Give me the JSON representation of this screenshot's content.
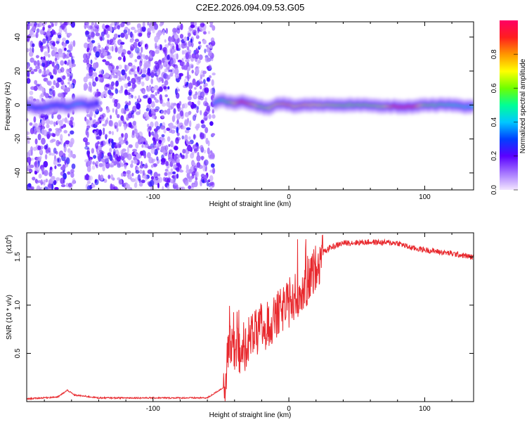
{
  "title": "C2E2.2026.094.09.53.G05",
  "chart_data": [
    {
      "type": "heatmap",
      "xlabel": "Height of straight line (km)",
      "ylabel": "Frequency (Hz)",
      "xlim": [
        -193,
        136
      ],
      "ylim": [
        -50,
        49
      ],
      "xticks": [
        -100,
        0,
        100
      ],
      "yticks": [
        -40,
        -20,
        0,
        20,
        40
      ],
      "colorbar": {
        "label": "Normalized spectral amplitude",
        "range": [
          0,
          1
        ],
        "ticks": [
          0.0,
          0.2,
          0.4,
          0.6,
          0.8
        ],
        "tick_labels": [
          "0.0",
          "0.2",
          "0.4",
          "0.6",
          "0.8"
        ]
      },
      "noise_regions": [
        [
          -193,
          -158
        ],
        [
          -150,
          -55
        ]
      ],
      "signal_track": [
        {
          "x": -193,
          "y": 0,
          "a": 0.35
        },
        {
          "x": -185,
          "y": -2,
          "a": 0.3
        },
        {
          "x": -178,
          "y": -1,
          "a": 0.35
        },
        {
          "x": -170,
          "y": 0,
          "a": 0.3
        },
        {
          "x": -162,
          "y": -1,
          "a": 0.35
        },
        {
          "x": -154,
          "y": 1,
          "a": 0.4
        },
        {
          "x": -147,
          "y": 0,
          "a": 0.3
        },
        {
          "x": -140,
          "y": 1,
          "a": 0.25
        },
        {
          "x": -55,
          "y": 1,
          "a": 0.35
        },
        {
          "x": -50,
          "y": 3,
          "a": 0.5
        },
        {
          "x": -45,
          "y": 2,
          "a": 0.55
        },
        {
          "x": -40,
          "y": 1,
          "a": 0.7
        },
        {
          "x": -35,
          "y": 2,
          "a": 0.9
        },
        {
          "x": -30,
          "y": 1,
          "a": 0.85
        },
        {
          "x": -25,
          "y": 0,
          "a": 0.7
        },
        {
          "x": -20,
          "y": -1,
          "a": 0.6
        },
        {
          "x": -15,
          "y": -2,
          "a": 0.65
        },
        {
          "x": -10,
          "y": 0,
          "a": 0.7
        },
        {
          "x": -5,
          "y": 1,
          "a": 0.75
        },
        {
          "x": 0,
          "y": 0,
          "a": 0.8
        },
        {
          "x": 5,
          "y": -1,
          "a": 0.7
        },
        {
          "x": 10,
          "y": 0,
          "a": 0.75
        },
        {
          "x": 20,
          "y": 0,
          "a": 0.7
        },
        {
          "x": 30,
          "y": 0,
          "a": 0.65
        },
        {
          "x": 40,
          "y": 0,
          "a": 0.6
        },
        {
          "x": 50,
          "y": 0,
          "a": 0.6
        },
        {
          "x": 60,
          "y": 0,
          "a": 0.6
        },
        {
          "x": 70,
          "y": -1,
          "a": 0.65
        },
        {
          "x": 78,
          "y": -1,
          "a": 0.9
        },
        {
          "x": 85,
          "y": -1,
          "a": 0.95
        },
        {
          "x": 92,
          "y": -1,
          "a": 0.9
        },
        {
          "x": 100,
          "y": 0,
          "a": 0.6
        },
        {
          "x": 110,
          "y": 0,
          "a": 0.55
        },
        {
          "x": 120,
          "y": 0,
          "a": 0.5
        },
        {
          "x": 130,
          "y": -1,
          "a": 0.45
        },
        {
          "x": 136,
          "y": -1,
          "a": 0.4
        }
      ]
    },
    {
      "type": "line",
      "xlabel": "Height of straight line (km)",
      "ylabel": "SNR (10 * v/v)",
      "y_multiplier_label": "(x10",
      "y_multiplier_exp": "4",
      "xlim": [
        -193,
        136
      ],
      "ylim": [
        0,
        1.75
      ],
      "xticks": [
        -100,
        0,
        100
      ],
      "yticks": [
        0.5,
        1.0,
        1.5
      ],
      "ytick_labels": [
        "0.5",
        "1.0",
        "1.5"
      ],
      "series": [
        {
          "color": "#e8282d",
          "envelope": [
            {
              "x": -193,
              "y": 0.03
            },
            {
              "x": -170,
              "y": 0.05
            },
            {
              "x": -163,
              "y": 0.12
            },
            {
              "x": -158,
              "y": 0.07
            },
            {
              "x": -140,
              "y": 0.04
            },
            {
              "x": -100,
              "y": 0.04
            },
            {
              "x": -60,
              "y": 0.04
            },
            {
              "x": -48,
              "y": 0.15
            },
            {
              "x": -44,
              "y": 0.6
            },
            {
              "x": -40,
              "y": 0.6
            },
            {
              "x": -35,
              "y": 0.5
            },
            {
              "x": -30,
              "y": 0.7
            },
            {
              "x": -25,
              "y": 0.75
            },
            {
              "x": -20,
              "y": 0.8
            },
            {
              "x": -15,
              "y": 0.85
            },
            {
              "x": -10,
              "y": 0.9
            },
            {
              "x": -5,
              "y": 1.0
            },
            {
              "x": 0,
              "y": 1.05
            },
            {
              "x": 5,
              "y": 1.15
            },
            {
              "x": 10,
              "y": 1.2
            },
            {
              "x": 15,
              "y": 1.3
            },
            {
              "x": 20,
              "y": 1.45
            },
            {
              "x": 25,
              "y": 1.55
            },
            {
              "x": 30,
              "y": 1.6
            },
            {
              "x": 40,
              "y": 1.65
            },
            {
              "x": 60,
              "y": 1.66
            },
            {
              "x": 80,
              "y": 1.65
            },
            {
              "x": 90,
              "y": 1.6
            },
            {
              "x": 100,
              "y": 1.58
            },
            {
              "x": 115,
              "y": 1.55
            },
            {
              "x": 125,
              "y": 1.53
            },
            {
              "x": 136,
              "y": 1.5
            }
          ]
        }
      ]
    }
  ]
}
